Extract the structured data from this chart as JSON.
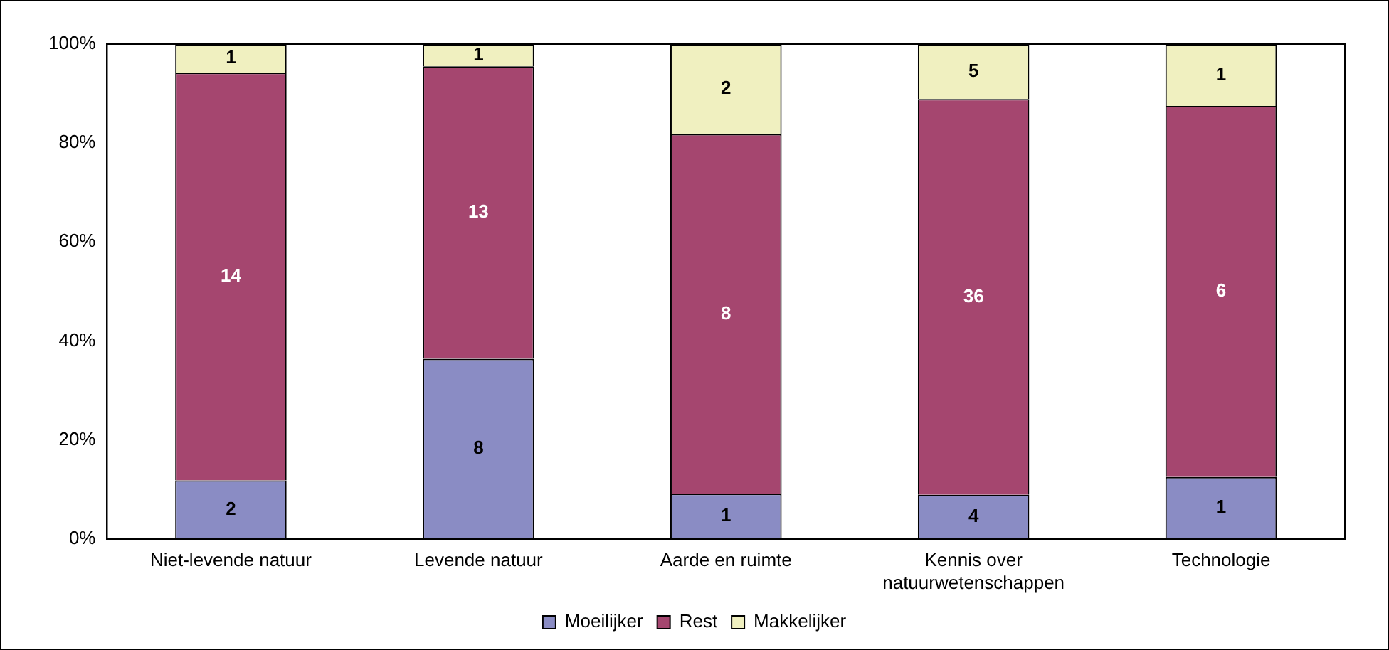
{
  "chart_data": {
    "type": "bar",
    "stacked": true,
    "categories": [
      "Niet-levende natuur",
      "Levende natuur",
      "Aarde en ruimte",
      "Kennis over natuurwetenschappen",
      "Technologie"
    ],
    "series": [
      {
        "name": "Moeilijker",
        "color": "#8a8cc4",
        "values": [
          11.8,
          36.4,
          9.1,
          8.9,
          12.5
        ]
      },
      {
        "name": "Rest",
        "color": "#a5466f",
        "values": [
          82.4,
          59.1,
          72.7,
          80,
          75
        ]
      },
      {
        "name": "Makkelijker",
        "color": "#f0f0c0",
        "values": [
          5.8,
          4.5,
          18.2,
          11.1,
          12.5
        ]
      }
    ],
    "ylim": [
      0,
      100
    ],
    "yticks": [
      {
        "value": 0,
        "label": "0%"
      },
      {
        "value": 20,
        "label": "20%"
      },
      {
        "value": 40,
        "label": "40%"
      },
      {
        "value": 60,
        "label": "60%"
      },
      {
        "value": 80,
        "label": "80%"
      },
      {
        "value": 100,
        "label": "100%"
      }
    ],
    "grid": false,
    "legend": "bottom",
    "annotations": [
      "2",
      "14",
      "1",
      "8",
      "13",
      "1",
      "1",
      "8",
      "2",
      "4",
      "36",
      "5",
      "1",
      "6",
      "1"
    ]
  }
}
